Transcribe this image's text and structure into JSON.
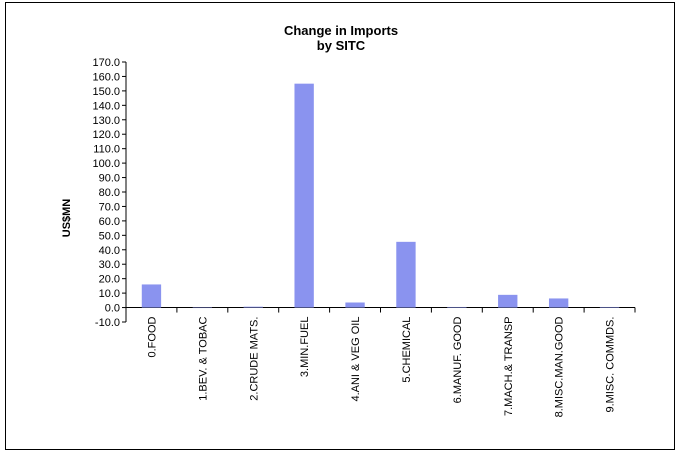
{
  "chart_data": {
    "type": "bar",
    "title_lines": [
      "Change in Imports",
      "by SITC"
    ],
    "xlabel": "",
    "ylabel": "US$MN",
    "ylim": [
      -10,
      170
    ],
    "ytick_step": 10,
    "grid": false,
    "legend": "none",
    "bar_color": "#8a93ef",
    "categories": [
      "0.FOOD",
      "1.BEV. & TOBAC",
      "2.CRUDE MATS.",
      "3.MIN.FUEL",
      "4.ANI & VEG OIL",
      "5.CHEMICAL",
      "6.MANUF. GOOD",
      "7.MACH.& TRANSP",
      "8.MISC.MAN.GOOD",
      "9.MISC. COMMDS."
    ],
    "values": [
      16.0,
      0.0,
      0.6,
      155.0,
      3.5,
      45.5,
      0.4,
      8.8,
      6.3,
      0.4
    ]
  }
}
